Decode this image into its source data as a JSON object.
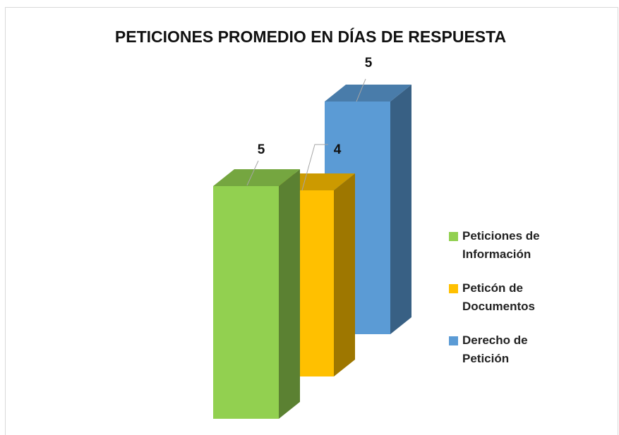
{
  "chart_data": {
    "type": "bar3d",
    "title": "PETICIONES PROMEDIO EN DÍAS DE RESPUESTA",
    "series": [
      {
        "name": "Peticiones de Información",
        "color": "#92d050",
        "values": [
          5
        ]
      },
      {
        "name": "Peticón de Documentos",
        "color": "#ffc000",
        "values": [
          4
        ]
      },
      {
        "name": "Derecho de Petición",
        "color": "#5b9bd5",
        "values": [
          5
        ]
      }
    ],
    "legend": "right"
  }
}
